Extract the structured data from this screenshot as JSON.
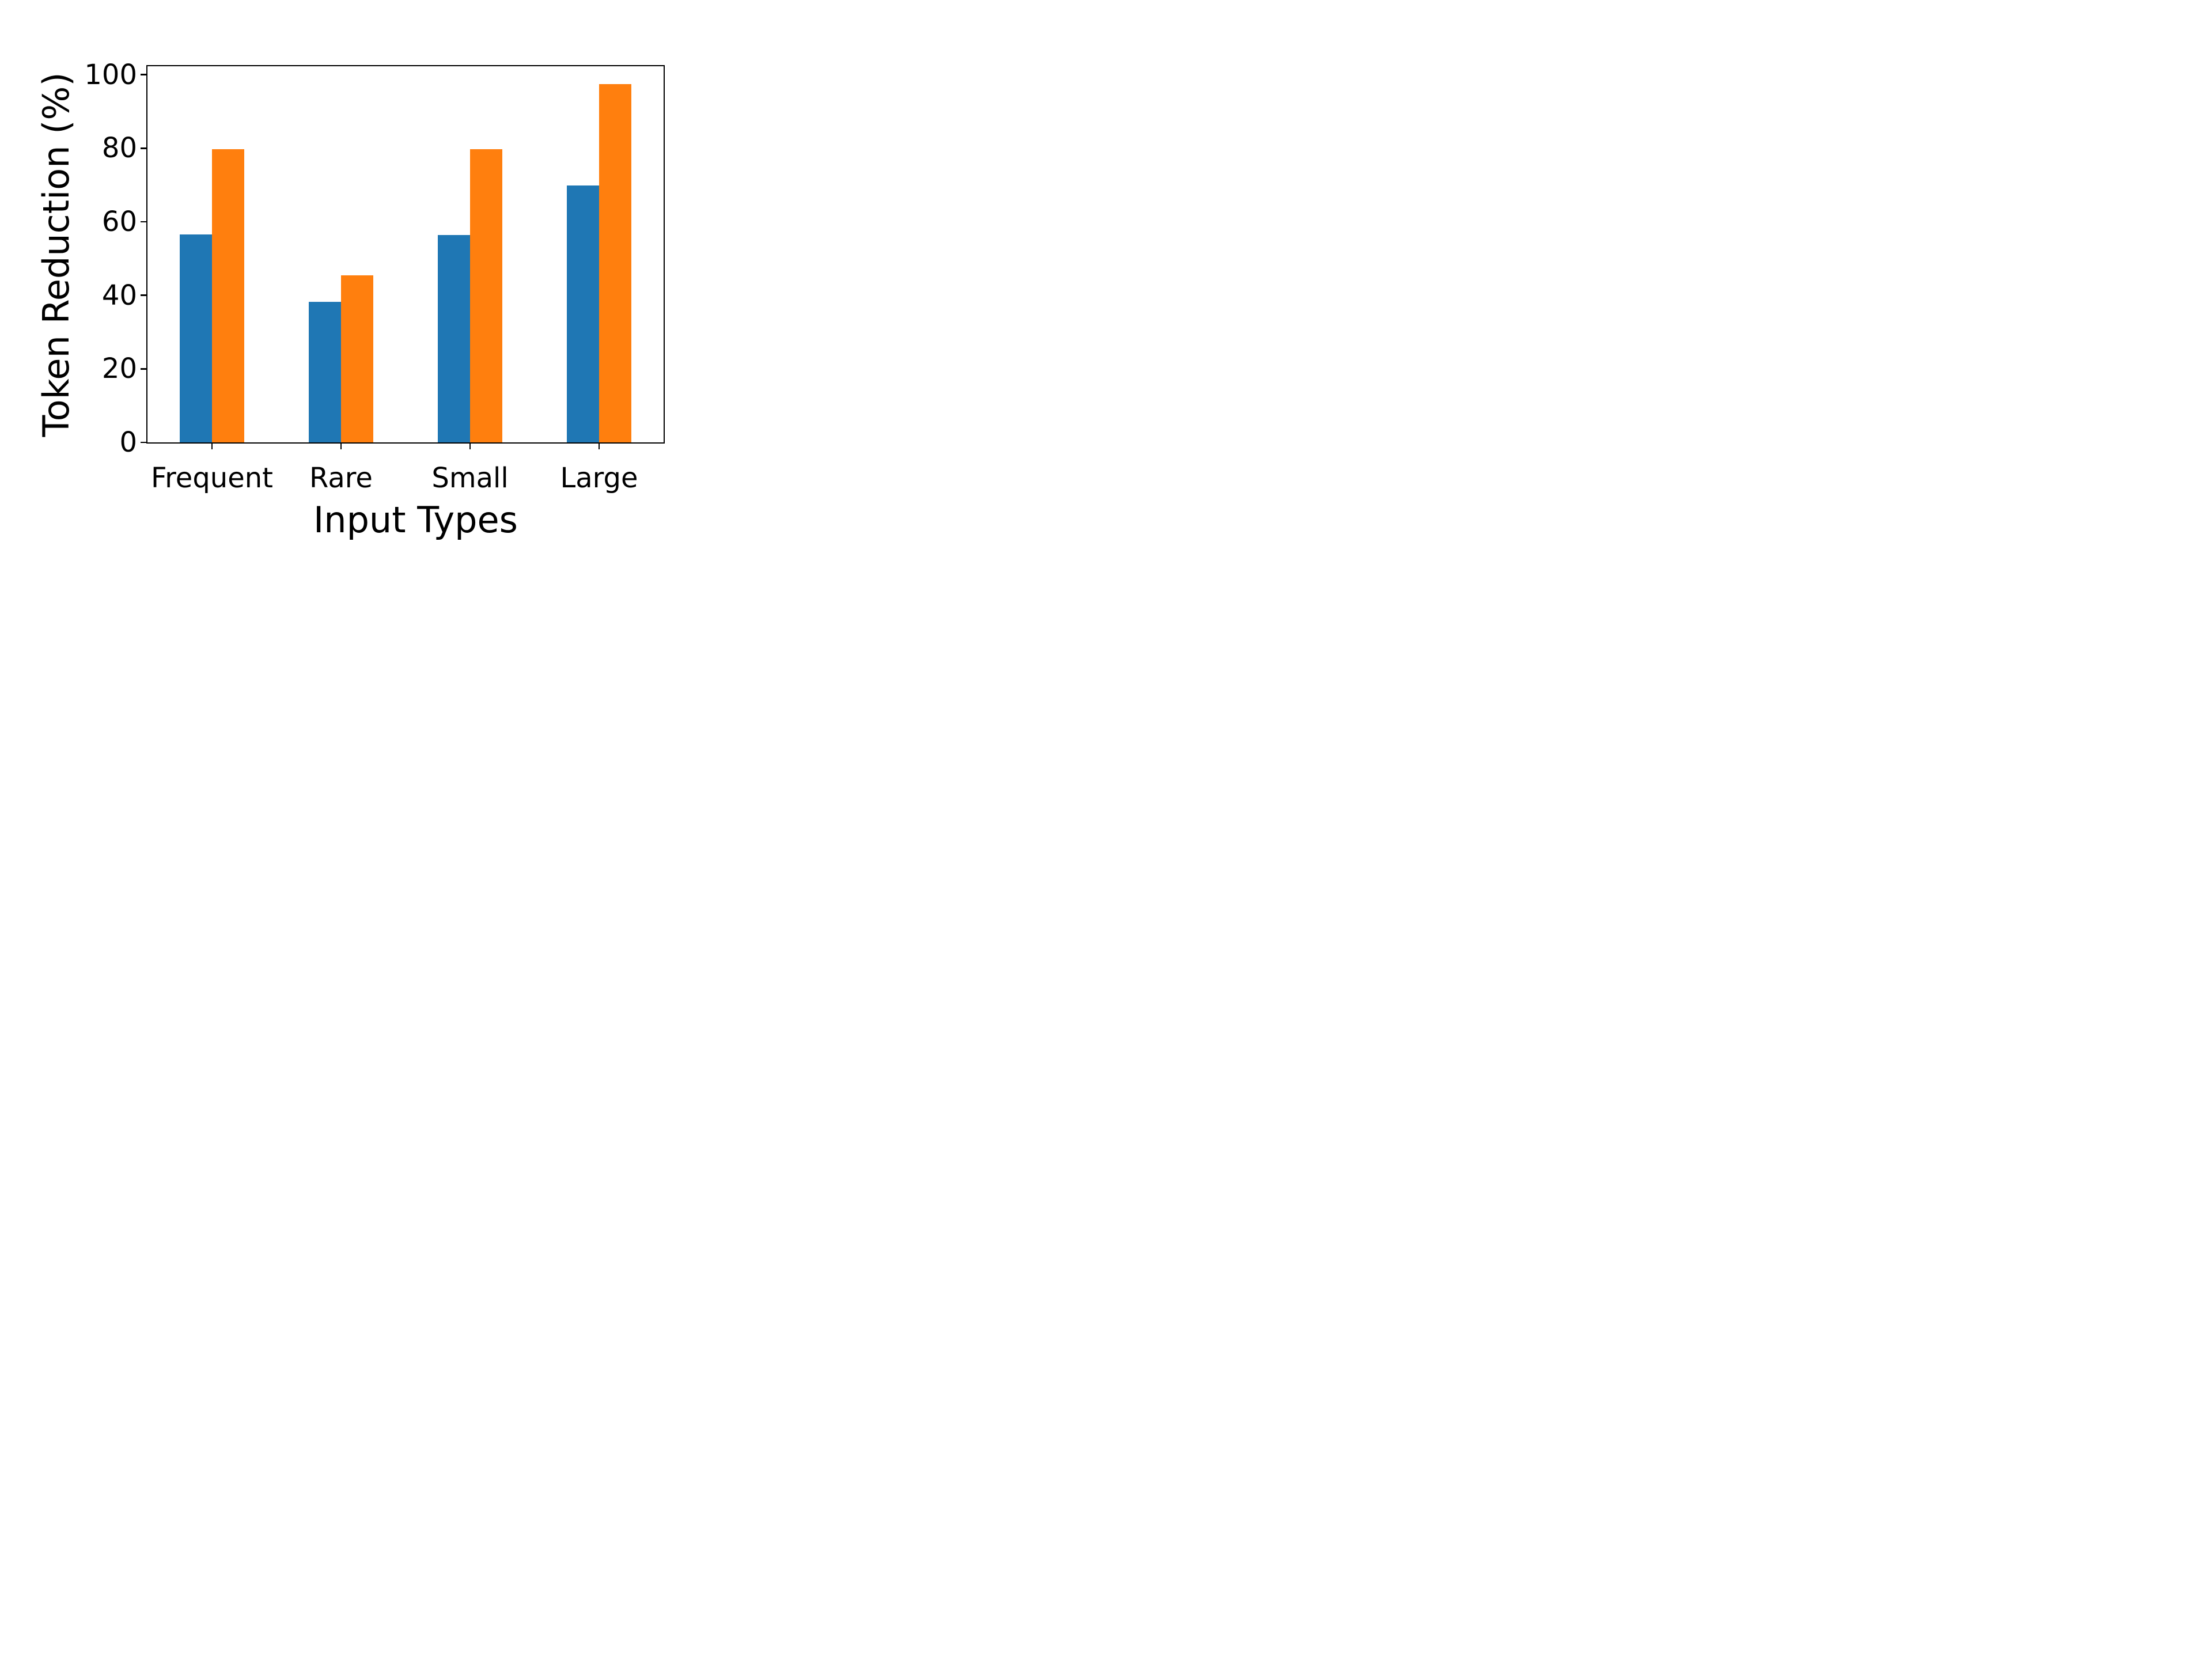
{
  "chart_data": {
    "type": "bar",
    "title": "",
    "xlabel": "Input Types",
    "ylabel": "Token Reduction (%)",
    "categories": [
      "Frequent",
      "Rare",
      "Small",
      "Large"
    ],
    "series": [
      {
        "name": "",
        "color": "#1f77b4",
        "values": [
          56.6,
          38.2,
          56.4,
          69.9
        ]
      },
      {
        "name": "",
        "color": "#ff7f0e",
        "values": [
          79.8,
          45.5,
          79.7,
          97.4
        ]
      }
    ],
    "yticks": [
      0,
      20,
      40,
      60,
      80,
      100
    ],
    "ylim": [
      0,
      102.3
    ],
    "grid": false,
    "legend": "none",
    "colors": {
      "series_blue": "#1f77b4",
      "series_orange": "#ff7f0e",
      "axis": "#000000",
      "background": "#ffffff"
    }
  }
}
